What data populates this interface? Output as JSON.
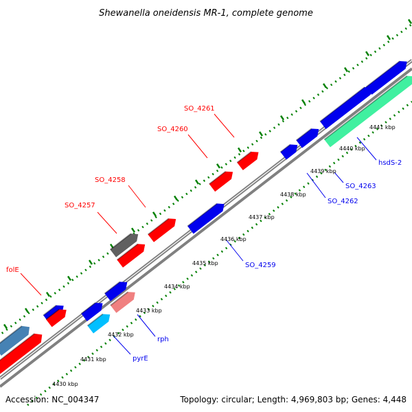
{
  "title": "Shewanella oneidensis MR-1, complete genome",
  "footer": {
    "accession": "Accession: NC_004347",
    "summary": "Topology: circular; Length: 4,969,803 bp; Genes: 4,448"
  },
  "ticks": [
    "4430 kbp",
    "4431 kbp",
    "4432 kbp",
    "4433 kbp",
    "4434 kbp",
    "4435 kbp",
    "4436 kbp",
    "4437 kbp",
    "4438 kbp",
    "4439 kbp",
    "4440 kbp",
    "4441 kbp"
  ],
  "colors": {
    "forward_gene": "#ff0000",
    "reverse_gene": "#0000ee",
    "backbone": "#808080",
    "dots": "#008000",
    "steelblue_gene": "#4682b4",
    "gray_gene": "#606060",
    "pink_gene": "#f08080",
    "cyan_gene": "#00bfff",
    "aquamarine_gene": "#40f0a0"
  },
  "genes_labeled": [
    {
      "name": "folE",
      "strand": "forward"
    },
    {
      "name": "SO_4257",
      "strand": "forward"
    },
    {
      "name": "SO_4258",
      "strand": "forward"
    },
    {
      "name": "SO_4260",
      "strand": "forward"
    },
    {
      "name": "SO_4261",
      "strand": "forward"
    },
    {
      "name": "rph",
      "strand": "reverse"
    },
    {
      "name": "pyrE",
      "strand": "reverse"
    },
    {
      "name": "SO_4259",
      "strand": "reverse"
    },
    {
      "name": "SO_4262",
      "strand": "reverse"
    },
    {
      "name": "SO_4263",
      "strand": "reverse"
    },
    {
      "name": "hsdS-2",
      "strand": "reverse"
    }
  ]
}
